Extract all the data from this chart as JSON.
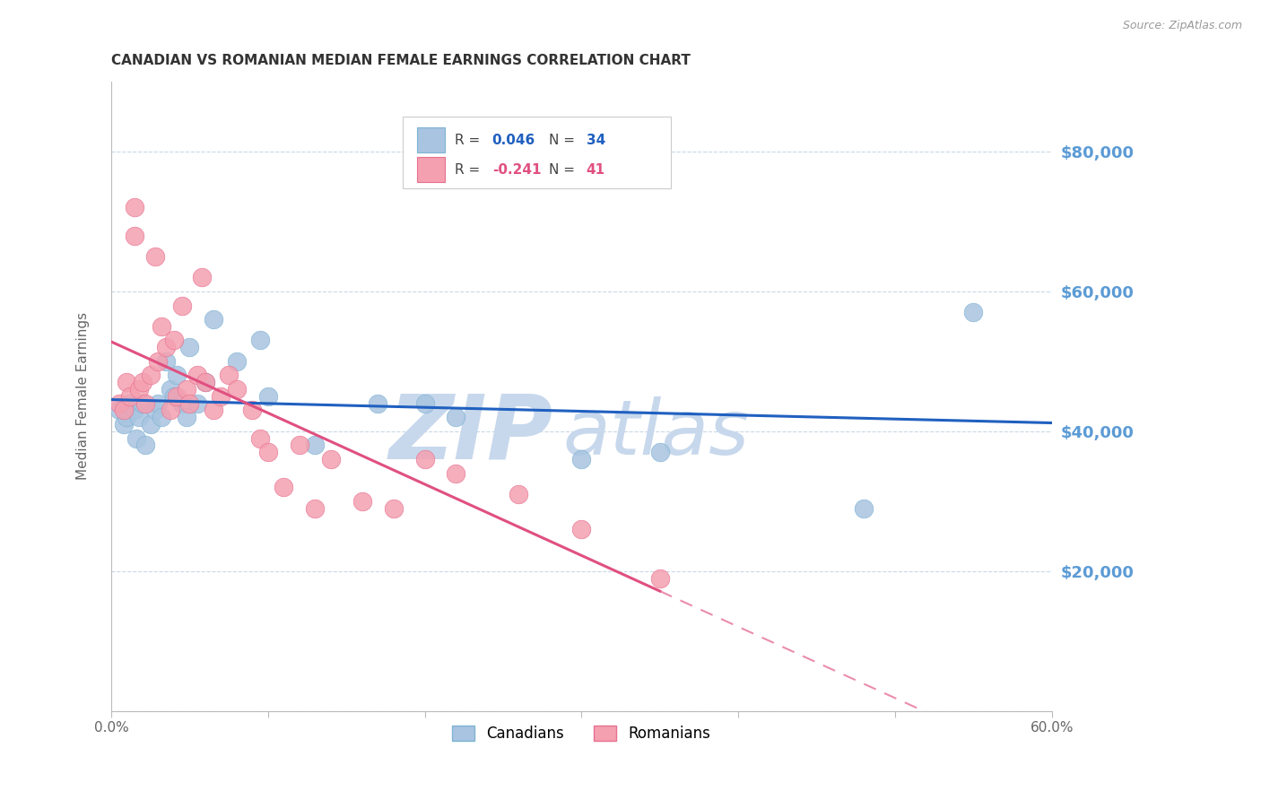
{
  "title": "CANADIAN VS ROMANIAN MEDIAN FEMALE EARNINGS CORRELATION CHART",
  "source": "Source: ZipAtlas.com",
  "ylabel": "Median Female Earnings",
  "xlim": [
    0.0,
    0.6
  ],
  "ylim": [
    0,
    90000
  ],
  "yticks": [
    0,
    20000,
    40000,
    60000,
    80000
  ],
  "ytick_labels": [
    "",
    "$20,000",
    "$40,000",
    "$60,000",
    "$80,000"
  ],
  "xticks": [
    0.0,
    0.1,
    0.2,
    0.3,
    0.4,
    0.5,
    0.6
  ],
  "xtick_labels": [
    "0.0%",
    "",
    "",
    "",
    "",
    "",
    "60.0%"
  ],
  "background_color": "#ffffff",
  "grid_color": "#c8d8e8",
  "axis_color": "#bbbbbb",
  "title_color": "#333333",
  "title_fontsize": 11,
  "right_label_color": "#5b9bd5",
  "canadians_color": "#a8c4e0",
  "romanians_color": "#f4a0b0",
  "canadians_edge": "#7fb3d3",
  "romanians_edge": "#e87090",
  "trend_canadian_color": "#2060c0",
  "trend_romanian_color": "#e05080",
  "watermark": "ZIPAtlas",
  "watermark_color": "#c8d8ec",
  "canadians_x": [
    0.005,
    0.008,
    0.01,
    0.012,
    0.015,
    0.016,
    0.018,
    0.02,
    0.022,
    0.025,
    0.028,
    0.03,
    0.032,
    0.035,
    0.038,
    0.04,
    0.042,
    0.045,
    0.048,
    0.05,
    0.055,
    0.06,
    0.065,
    0.08,
    0.095,
    0.1,
    0.13,
    0.17,
    0.2,
    0.22,
    0.3,
    0.35,
    0.48,
    0.55
  ],
  "canadians_y": [
    43000,
    41000,
    42000,
    44000,
    43000,
    39000,
    42000,
    44000,
    38000,
    41000,
    43000,
    44000,
    42000,
    50000,
    46000,
    45000,
    48000,
    44000,
    42000,
    52000,
    44000,
    47000,
    56000,
    50000,
    53000,
    45000,
    38000,
    44000,
    44000,
    42000,
    36000,
    37000,
    29000,
    57000
  ],
  "romanians_x": [
    0.005,
    0.008,
    0.01,
    0.012,
    0.015,
    0.015,
    0.018,
    0.02,
    0.022,
    0.025,
    0.028,
    0.03,
    0.032,
    0.035,
    0.038,
    0.04,
    0.042,
    0.045,
    0.048,
    0.05,
    0.055,
    0.058,
    0.06,
    0.065,
    0.07,
    0.075,
    0.08,
    0.09,
    0.095,
    0.1,
    0.11,
    0.12,
    0.13,
    0.14,
    0.16,
    0.18,
    0.2,
    0.22,
    0.26,
    0.3,
    0.35
  ],
  "romanians_y": [
    44000,
    43000,
    47000,
    45000,
    68000,
    72000,
    46000,
    47000,
    44000,
    48000,
    65000,
    50000,
    55000,
    52000,
    43000,
    53000,
    45000,
    58000,
    46000,
    44000,
    48000,
    62000,
    47000,
    43000,
    45000,
    48000,
    46000,
    43000,
    39000,
    37000,
    32000,
    38000,
    29000,
    36000,
    30000,
    29000,
    36000,
    34000,
    31000,
    26000,
    19000
  ]
}
